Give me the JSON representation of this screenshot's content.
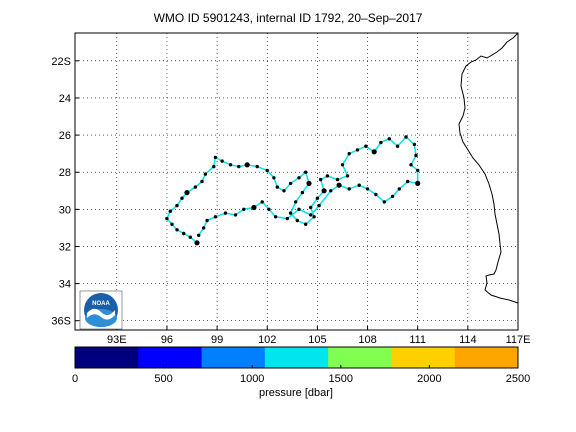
{
  "title": "WMO ID 5901243, internal ID 1792, 20–Sep–2017",
  "map": {
    "lon_ticks": [
      "93E",
      "96",
      "99",
      "102",
      "105",
      "108",
      "111",
      "114",
      "117E"
    ],
    "lat_ticks": [
      "22S",
      "24",
      "26",
      "28",
      "30",
      "32",
      "34",
      "36S"
    ],
    "lon_range": [
      90.5,
      117.0
    ],
    "lat_range": [
      -36.5,
      -20.5
    ],
    "grid": true,
    "logo_text": "NOAA"
  },
  "colorbar": {
    "label": "pressure [dbar]",
    "ticks": [
      "0",
      "500",
      "1000",
      "1500",
      "2000",
      "2500"
    ],
    "colors": [
      "#00007f",
      "#0000ff",
      "#007fff",
      "#00e5ee",
      "#80ff50",
      "#ffd000",
      "#ffa500"
    ]
  },
  "trajectory": {
    "line_color": "#00e5ee",
    "marker_color": "#000000",
    "points": [
      [
        97.8,
        -31.8
      ],
      [
        97.4,
        -31.5
      ],
      [
        97.0,
        -31.3
      ],
      [
        96.6,
        -31.1
      ],
      [
        96.3,
        -30.8
      ],
      [
        96.0,
        -30.5
      ],
      [
        96.2,
        -30.1
      ],
      [
        96.6,
        -29.8
      ],
      [
        96.9,
        -29.4
      ],
      [
        97.2,
        -29.1
      ],
      [
        97.7,
        -28.8
      ],
      [
        98.1,
        -28.5
      ],
      [
        98.3,
        -28.1
      ],
      [
        98.8,
        -27.7
      ],
      [
        98.9,
        -27.2
      ],
      [
        99.3,
        -27.4
      ],
      [
        99.8,
        -27.6
      ],
      [
        100.3,
        -27.7
      ],
      [
        100.8,
        -27.6
      ],
      [
        101.4,
        -27.7
      ],
      [
        102.0,
        -27.9
      ],
      [
        102.4,
        -28.3
      ],
      [
        102.6,
        -28.8
      ],
      [
        103.0,
        -29.0
      ],
      [
        103.4,
        -28.6
      ],
      [
        103.9,
        -28.3
      ],
      [
        104.3,
        -28.0
      ],
      [
        104.5,
        -28.6
      ],
      [
        104.1,
        -29.1
      ],
      [
        103.7,
        -29.6
      ],
      [
        103.4,
        -30.2
      ],
      [
        103.8,
        -30.6
      ],
      [
        104.3,
        -30.8
      ],
      [
        104.8,
        -30.4
      ],
      [
        104.6,
        -29.9
      ],
      [
        105.0,
        -29.4
      ],
      [
        105.4,
        -29.0
      ],
      [
        105.2,
        -28.4
      ],
      [
        105.6,
        -28.2
      ],
      [
        106.2,
        -28.4
      ],
      [
        106.8,
        -28.2
      ],
      [
        106.5,
        -27.6
      ],
      [
        106.9,
        -27.0
      ],
      [
        107.4,
        -26.8
      ],
      [
        107.9,
        -26.6
      ],
      [
        108.4,
        -26.9
      ],
      [
        108.8,
        -26.4
      ],
      [
        109.3,
        -26.2
      ],
      [
        109.8,
        -26.6
      ],
      [
        110.3,
        -26.1
      ],
      [
        110.8,
        -26.5
      ],
      [
        110.9,
        -27.1
      ],
      [
        110.6,
        -27.6
      ],
      [
        111.0,
        -27.9
      ],
      [
        111.0,
        -28.6
      ],
      [
        110.4,
        -28.5
      ],
      [
        109.9,
        -28.9
      ],
      [
        109.5,
        -29.3
      ],
      [
        109.0,
        -29.6
      ],
      [
        108.5,
        -29.2
      ],
      [
        108.0,
        -28.9
      ],
      [
        107.5,
        -28.7
      ],
      [
        106.9,
        -28.9
      ],
      [
        106.3,
        -28.7
      ],
      [
        105.8,
        -29.0
      ],
      [
        105.1,
        -29.8
      ],
      [
        104.6,
        -30.3
      ],
      [
        103.9,
        -30.0
      ],
      [
        103.2,
        -30.5
      ],
      [
        102.5,
        -30.4
      ],
      [
        102.1,
        -30.0
      ],
      [
        101.7,
        -29.6
      ],
      [
        101.2,
        -29.9
      ],
      [
        100.6,
        -30.0
      ],
      [
        100.1,
        -30.3
      ],
      [
        99.5,
        -30.2
      ],
      [
        98.9,
        -30.4
      ],
      [
        98.4,
        -30.6
      ],
      [
        98.2,
        -31.0
      ],
      [
        97.9,
        -31.4
      ]
    ]
  }
}
